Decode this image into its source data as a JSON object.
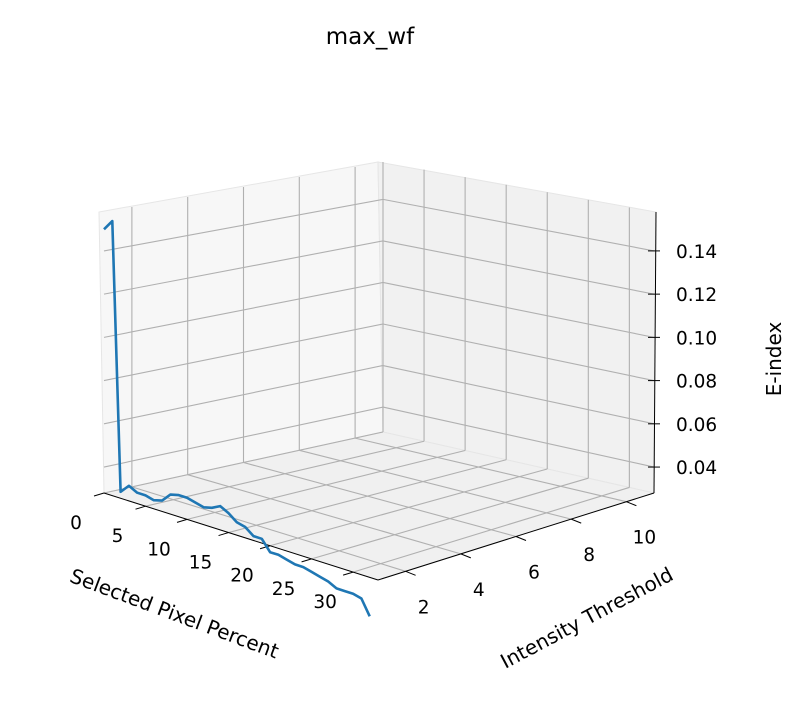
{
  "chart_data": {
    "type": "line",
    "projection": "3d",
    "title": "max_wf",
    "xlabel": "Selected Pixel Percent",
    "ylabel": "Intensity Threshold",
    "zlabel": "E-index",
    "x_ticks": [
      "0",
      "5",
      "10",
      "15",
      "20",
      "25",
      "30"
    ],
    "y_ticks": [
      "2",
      "4",
      "6",
      "8",
      "10"
    ],
    "z_ticks": [
      "0.04",
      "0.06",
      "0.08",
      "0.10",
      "0.12",
      "0.14"
    ],
    "xlim": [
      0,
      33
    ],
    "ylim": [
      1,
      11
    ],
    "zlim": [
      0.028,
      0.158
    ],
    "grid": true,
    "series": [
      {
        "color": "#1f77b4",
        "x": [
          0,
          1,
          2,
          3,
          4,
          5,
          6,
          7,
          8,
          9,
          10,
          11,
          12,
          13,
          14,
          15,
          16,
          17,
          18,
          19,
          20,
          21,
          22,
          23,
          24,
          25,
          26,
          27,
          28,
          29,
          30,
          31,
          32
        ],
        "y": [
          1,
          1,
          1,
          1,
          1,
          1,
          1,
          1,
          1,
          1,
          1,
          1,
          1,
          1,
          1,
          1,
          1,
          1,
          1,
          1,
          1,
          1,
          1,
          1,
          1,
          1,
          1,
          1,
          1,
          1,
          1,
          1,
          1
        ],
        "z": [
          0.15,
          0.155,
          0.031,
          0.035,
          0.033,
          0.033,
          0.032,
          0.033,
          0.037,
          0.038,
          0.038,
          0.037,
          0.036,
          0.037,
          0.039,
          0.037,
          0.034,
          0.033,
          0.03,
          0.03,
          0.025,
          0.025,
          0.024,
          0.023,
          0.023,
          0.022,
          0.021,
          0.02,
          0.018,
          0.018,
          0.018,
          0.017,
          0.01
        ]
      }
    ]
  }
}
